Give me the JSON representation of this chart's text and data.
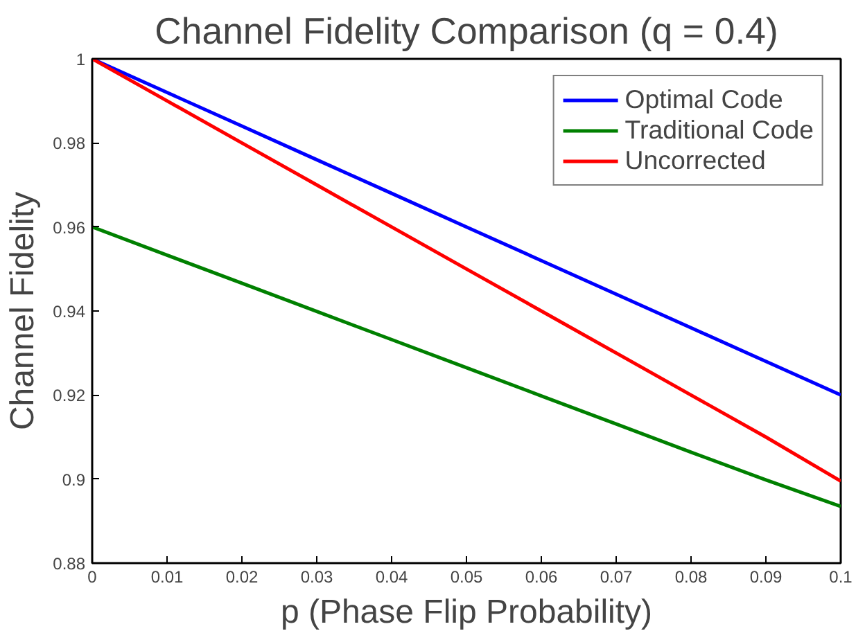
{
  "chart_data": {
    "type": "line",
    "title": "Channel Fidelity Comparison (q = 0.4)",
    "xlabel": "p (Phase Flip Probability)",
    "ylabel": "Channel Fidelity",
    "x": [
      0,
      0.01,
      0.02,
      0.03,
      0.04,
      0.05,
      0.06,
      0.07,
      0.08,
      0.09,
      0.1
    ],
    "series": [
      {
        "name": "Optimal Code",
        "color": "#0000ff",
        "values": [
          1,
          0.992,
          0.984,
          0.976,
          0.968,
          0.96,
          0.952,
          0.944,
          0.936,
          0.928,
          0.92
        ]
      },
      {
        "name": "Traditional Code",
        "color": "#008000",
        "values": [
          0.96,
          0.9533,
          0.9466,
          0.9399,
          0.9332,
          0.9265,
          0.9198,
          0.9131,
          0.9064,
          0.8998,
          0.8935
        ]
      },
      {
        "name": "Uncorrected",
        "color": "#ff0000",
        "values": [
          1,
          0.99,
          0.98,
          0.97,
          0.96,
          0.95,
          0.94,
          0.93,
          0.92,
          0.91,
          0.8995
        ]
      }
    ],
    "xlim": [
      0,
      0.1
    ],
    "ylim": [
      0.88,
      1
    ],
    "xticks": [
      0,
      0.01,
      0.02,
      0.03,
      0.04,
      0.05,
      0.06,
      0.07,
      0.08,
      0.09,
      0.1
    ],
    "yticks": [
      0.88,
      0.9,
      0.92,
      0.94,
      0.96,
      0.98,
      1
    ],
    "legend": "top right",
    "grid": false,
    "marker": "none",
    "line_style": "solid"
  }
}
